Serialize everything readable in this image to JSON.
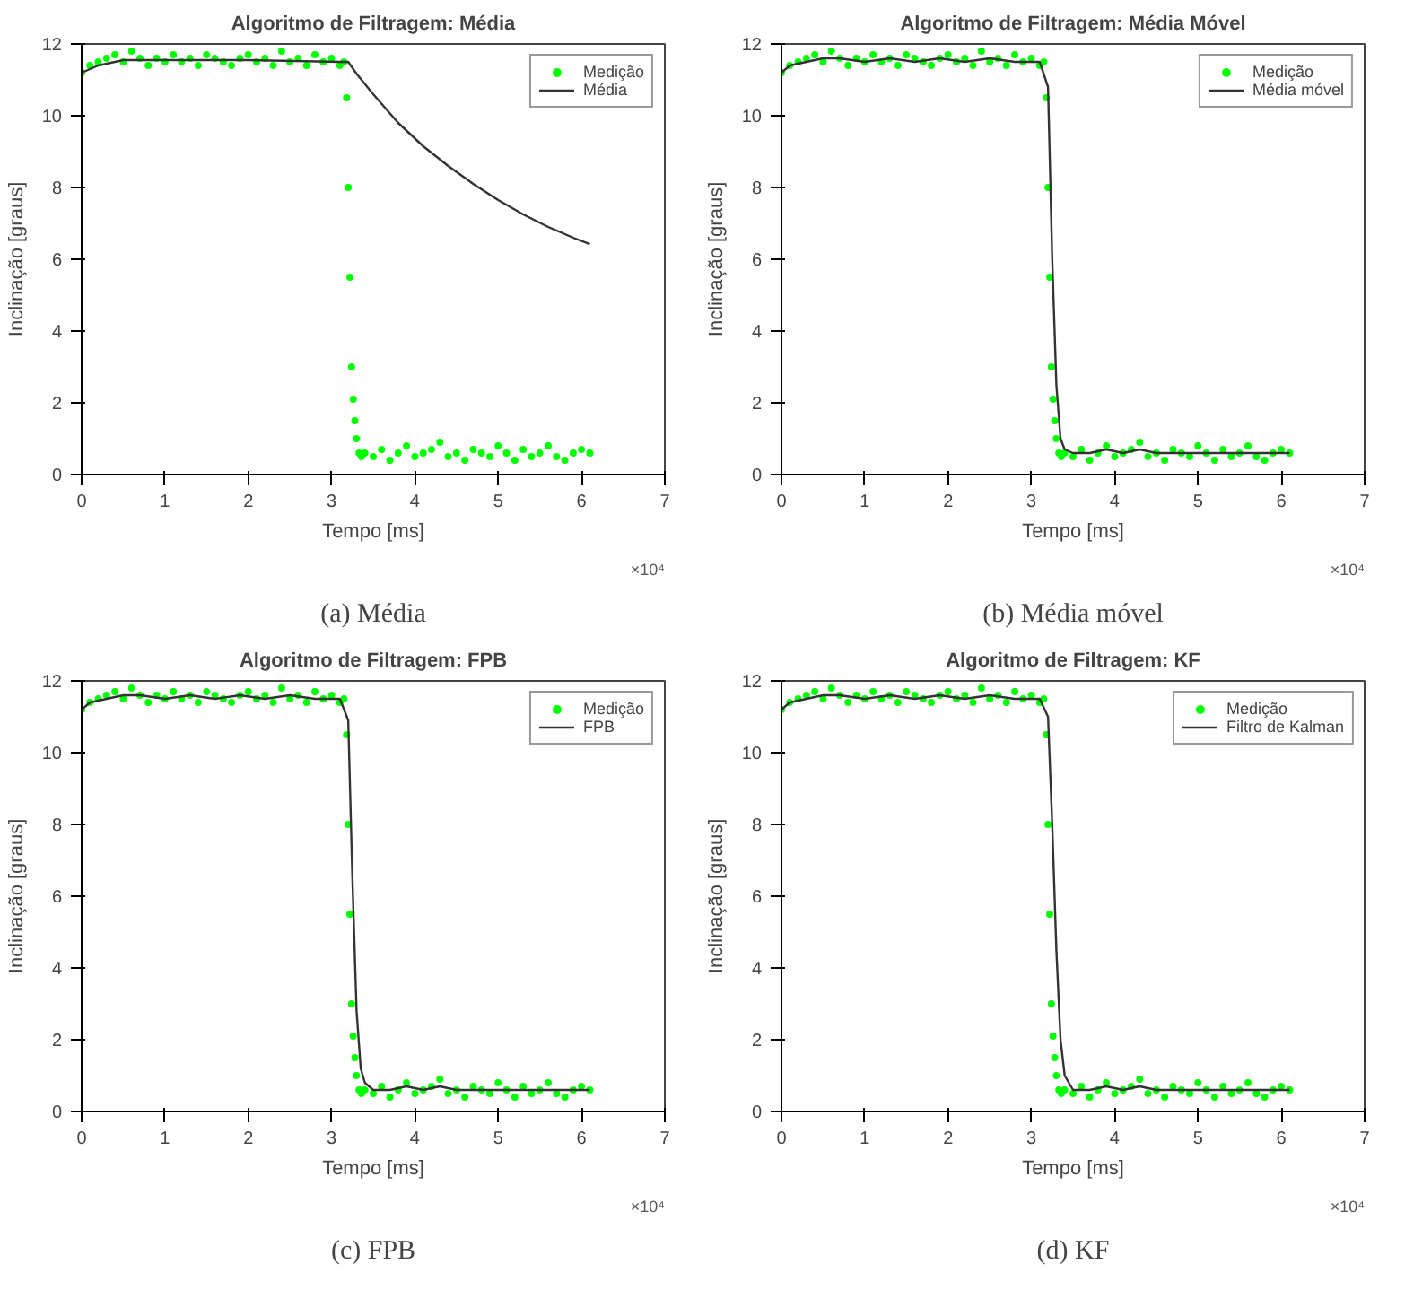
{
  "chart_data": [
    {
      "type": "line",
      "title": "Algoritmo de Filtragem: Média",
      "xlabel": "Tempo [ms]",
      "ylabel": "Inclinação [graus]",
      "annotations": [
        "×10⁴",
        "(a) Média"
      ],
      "xlim": [
        0,
        7
      ],
      "ylim": [
        0,
        12
      ],
      "xticks": [
        0,
        1,
        2,
        3,
        4,
        5,
        6,
        7
      ],
      "yticks": [
        0,
        2,
        4,
        6,
        8,
        10,
        12
      ],
      "grid": false,
      "legend": "top right",
      "series": [
        {
          "name": "Medição",
          "type": "scatter",
          "marker": "circle",
          "color": "#00ff00",
          "x": [
            0,
            0.1,
            0.2,
            0.3,
            0.4,
            0.5,
            0.6,
            0.7,
            0.8,
            0.9,
            1.0,
            1.1,
            1.2,
            1.3,
            1.4,
            1.5,
            1.6,
            1.7,
            1.8,
            1.9,
            2.0,
            2.1,
            2.2,
            2.3,
            2.4,
            2.5,
            2.6,
            2.7,
            2.8,
            2.9,
            3.0,
            3.1,
            3.15,
            3.18,
            3.2,
            3.22,
            3.24,
            3.26,
            3.28,
            3.3,
            3.33,
            3.36,
            3.4,
            3.5,
            3.6,
            3.7,
            3.8,
            3.9,
            4.0,
            4.1,
            4.2,
            4.3,
            4.4,
            4.5,
            4.6,
            4.7,
            4.8,
            4.9,
            5.0,
            5.1,
            5.2,
            5.3,
            5.4,
            5.5,
            5.6,
            5.7,
            5.8,
            5.9,
            6.0,
            6.1
          ],
          "values": [
            11.2,
            11.4,
            11.5,
            11.6,
            11.7,
            11.5,
            11.8,
            11.6,
            11.4,
            11.6,
            11.5,
            11.7,
            11.5,
            11.6,
            11.4,
            11.7,
            11.6,
            11.5,
            11.4,
            11.6,
            11.7,
            11.5,
            11.6,
            11.4,
            11.8,
            11.5,
            11.6,
            11.4,
            11.7,
            11.5,
            11.6,
            11.4,
            11.5,
            10.5,
            8.0,
            5.5,
            3.0,
            2.1,
            1.5,
            1.0,
            0.6,
            0.5,
            0.6,
            0.5,
            0.7,
            0.4,
            0.6,
            0.8,
            0.5,
            0.6,
            0.7,
            0.9,
            0.5,
            0.6,
            0.4,
            0.7,
            0.6,
            0.5,
            0.8,
            0.6,
            0.4,
            0.7,
            0.5,
            0.6,
            0.8,
            0.5,
            0.4,
            0.6,
            0.7,
            0.6
          ]
        },
        {
          "name": "Média",
          "color": "#333333",
          "x": [
            0,
            0.2,
            0.5,
            1.0,
            2.0,
            3.1,
            3.2,
            3.3,
            3.5,
            3.8,
            4.1,
            4.4,
            4.7,
            5.0,
            5.3,
            5.6,
            5.9,
            6.1
          ],
          "values": [
            11.2,
            11.4,
            11.55,
            11.55,
            11.55,
            11.5,
            11.5,
            11.17,
            10.6,
            9.8,
            9.15,
            8.6,
            8.1,
            7.65,
            7.25,
            6.9,
            6.6,
            6.42
          ]
        }
      ]
    },
    {
      "type": "line",
      "title": "Algoritmo de Filtragem: Média Móvel",
      "xlabel": "Tempo [ms]",
      "ylabel": "Inclinação [graus]",
      "annotations": [
        "×10⁴",
        "(b) Média móvel"
      ],
      "xlim": [
        0,
        7
      ],
      "ylim": [
        0,
        12
      ],
      "xticks": [
        0,
        1,
        2,
        3,
        4,
        5,
        6,
        7
      ],
      "yticks": [
        0,
        2,
        4,
        6,
        8,
        10,
        12
      ],
      "grid": false,
      "legend": "top right",
      "series": [
        {
          "name": "Medição",
          "type": "scatter",
          "marker": "circle",
          "color": "#00ff00",
          "x": [
            0,
            0.1,
            0.2,
            0.3,
            0.4,
            0.5,
            0.6,
            0.7,
            0.8,
            0.9,
            1.0,
            1.1,
            1.2,
            1.3,
            1.4,
            1.5,
            1.6,
            1.7,
            1.8,
            1.9,
            2.0,
            2.1,
            2.2,
            2.3,
            2.4,
            2.5,
            2.6,
            2.7,
            2.8,
            2.9,
            3.0,
            3.1,
            3.15,
            3.18,
            3.2,
            3.22,
            3.24,
            3.26,
            3.28,
            3.3,
            3.33,
            3.36,
            3.4,
            3.5,
            3.6,
            3.7,
            3.8,
            3.9,
            4.0,
            4.1,
            4.2,
            4.3,
            4.4,
            4.5,
            4.6,
            4.7,
            4.8,
            4.9,
            5.0,
            5.1,
            5.2,
            5.3,
            5.4,
            5.5,
            5.6,
            5.7,
            5.8,
            5.9,
            6.0,
            6.1
          ],
          "values": [
            11.2,
            11.4,
            11.5,
            11.6,
            11.7,
            11.5,
            11.8,
            11.6,
            11.4,
            11.6,
            11.5,
            11.7,
            11.5,
            11.6,
            11.4,
            11.7,
            11.6,
            11.5,
            11.4,
            11.6,
            11.7,
            11.5,
            11.6,
            11.4,
            11.8,
            11.5,
            11.6,
            11.4,
            11.7,
            11.5,
            11.6,
            11.4,
            11.5,
            10.5,
            8.0,
            5.5,
            3.0,
            2.1,
            1.5,
            1.0,
            0.6,
            0.5,
            0.6,
            0.5,
            0.7,
            0.4,
            0.6,
            0.8,
            0.5,
            0.6,
            0.7,
            0.9,
            0.5,
            0.6,
            0.4,
            0.7,
            0.6,
            0.5,
            0.8,
            0.6,
            0.4,
            0.7,
            0.5,
            0.6,
            0.8,
            0.5,
            0.4,
            0.6,
            0.7,
            0.6
          ]
        },
        {
          "name": "Média móvel",
          "color": "#333333",
          "x": [
            0,
            0.1,
            0.3,
            0.5,
            0.7,
            1.0,
            1.3,
            1.6,
            1.9,
            2.2,
            2.5,
            2.8,
            3.1,
            3.2,
            3.25,
            3.3,
            3.35,
            3.4,
            3.5,
            3.7,
            3.9,
            4.1,
            4.3,
            4.5,
            4.7,
            4.9,
            5.1,
            5.3,
            5.5,
            5.7,
            5.9,
            6.1
          ],
          "values": [
            11.2,
            11.4,
            11.5,
            11.6,
            11.6,
            11.5,
            11.6,
            11.5,
            11.6,
            11.5,
            11.6,
            11.5,
            11.5,
            10.8,
            6.0,
            2.5,
            1.0,
            0.7,
            0.6,
            0.6,
            0.7,
            0.6,
            0.7,
            0.6,
            0.6,
            0.6,
            0.6,
            0.6,
            0.6,
            0.6,
            0.6,
            0.6
          ]
        }
      ]
    },
    {
      "type": "line",
      "title": "Algoritmo de Filtragem: FPB",
      "xlabel": "Tempo [ms]",
      "ylabel": "Inclinação [graus]",
      "annotations": [
        "×10⁴",
        "(c) FPB"
      ],
      "xlim": [
        0,
        7
      ],
      "ylim": [
        0,
        12
      ],
      "xticks": [
        0,
        1,
        2,
        3,
        4,
        5,
        6,
        7
      ],
      "yticks": [
        0,
        2,
        4,
        6,
        8,
        10,
        12
      ],
      "grid": false,
      "legend": "top right",
      "series": [
        {
          "name": "Medição",
          "type": "scatter",
          "marker": "circle",
          "color": "#00ff00",
          "x": [
            0,
            0.1,
            0.2,
            0.3,
            0.4,
            0.5,
            0.6,
            0.7,
            0.8,
            0.9,
            1.0,
            1.1,
            1.2,
            1.3,
            1.4,
            1.5,
            1.6,
            1.7,
            1.8,
            1.9,
            2.0,
            2.1,
            2.2,
            2.3,
            2.4,
            2.5,
            2.6,
            2.7,
            2.8,
            2.9,
            3.0,
            3.1,
            3.15,
            3.18,
            3.2,
            3.22,
            3.24,
            3.26,
            3.28,
            3.3,
            3.33,
            3.36,
            3.4,
            3.5,
            3.6,
            3.7,
            3.8,
            3.9,
            4.0,
            4.1,
            4.2,
            4.3,
            4.4,
            4.5,
            4.6,
            4.7,
            4.8,
            4.9,
            5.0,
            5.1,
            5.2,
            5.3,
            5.4,
            5.5,
            5.6,
            5.7,
            5.8,
            5.9,
            6.0,
            6.1
          ],
          "values": [
            11.2,
            11.4,
            11.5,
            11.6,
            11.7,
            11.5,
            11.8,
            11.6,
            11.4,
            11.6,
            11.5,
            11.7,
            11.5,
            11.6,
            11.4,
            11.7,
            11.6,
            11.5,
            11.4,
            11.6,
            11.7,
            11.5,
            11.6,
            11.4,
            11.8,
            11.5,
            11.6,
            11.4,
            11.7,
            11.5,
            11.6,
            11.4,
            11.5,
            10.5,
            8.0,
            5.5,
            3.0,
            2.1,
            1.5,
            1.0,
            0.6,
            0.5,
            0.6,
            0.5,
            0.7,
            0.4,
            0.6,
            0.8,
            0.5,
            0.6,
            0.7,
            0.9,
            0.5,
            0.6,
            0.4,
            0.7,
            0.6,
            0.5,
            0.8,
            0.6,
            0.4,
            0.7,
            0.5,
            0.6,
            0.8,
            0.5,
            0.4,
            0.6,
            0.7,
            0.6
          ]
        },
        {
          "name": "FPB",
          "color": "#333333",
          "x": [
            0,
            0.1,
            0.3,
            0.5,
            0.7,
            1.0,
            1.3,
            1.6,
            1.9,
            2.2,
            2.5,
            2.8,
            3.1,
            3.2,
            3.25,
            3.3,
            3.35,
            3.4,
            3.5,
            3.7,
            3.9,
            4.1,
            4.3,
            4.5,
            4.7,
            4.9,
            5.1,
            5.3,
            5.5,
            5.7,
            5.9,
            6.1
          ],
          "values": [
            11.2,
            11.4,
            11.5,
            11.6,
            11.6,
            11.5,
            11.6,
            11.5,
            11.6,
            11.5,
            11.6,
            11.5,
            11.5,
            10.9,
            6.5,
            2.8,
            1.2,
            0.8,
            0.6,
            0.6,
            0.7,
            0.6,
            0.7,
            0.6,
            0.6,
            0.6,
            0.6,
            0.6,
            0.6,
            0.6,
            0.6,
            0.6
          ]
        }
      ]
    },
    {
      "type": "line",
      "title": "Algoritmo de Filtragem: KF",
      "xlabel": "Tempo [ms]",
      "ylabel": "Inclinação [graus]",
      "annotations": [
        "×10⁴",
        "(d) KF"
      ],
      "xlim": [
        0,
        7
      ],
      "ylim": [
        0,
        12
      ],
      "xticks": [
        0,
        1,
        2,
        3,
        4,
        5,
        6,
        7
      ],
      "yticks": [
        0,
        2,
        4,
        6,
        8,
        10,
        12
      ],
      "grid": false,
      "legend": "top right",
      "series": [
        {
          "name": "Medição",
          "type": "scatter",
          "marker": "circle",
          "color": "#00ff00",
          "x": [
            0,
            0.1,
            0.2,
            0.3,
            0.4,
            0.5,
            0.6,
            0.7,
            0.8,
            0.9,
            1.0,
            1.1,
            1.2,
            1.3,
            1.4,
            1.5,
            1.6,
            1.7,
            1.8,
            1.9,
            2.0,
            2.1,
            2.2,
            2.3,
            2.4,
            2.5,
            2.6,
            2.7,
            2.8,
            2.9,
            3.0,
            3.1,
            3.15,
            3.18,
            3.2,
            3.22,
            3.24,
            3.26,
            3.28,
            3.3,
            3.33,
            3.36,
            3.4,
            3.5,
            3.6,
            3.7,
            3.8,
            3.9,
            4.0,
            4.1,
            4.2,
            4.3,
            4.4,
            4.5,
            4.6,
            4.7,
            4.8,
            4.9,
            5.0,
            5.1,
            5.2,
            5.3,
            5.4,
            5.5,
            5.6,
            5.7,
            5.8,
            5.9,
            6.0,
            6.1
          ],
          "values": [
            11.2,
            11.4,
            11.5,
            11.6,
            11.7,
            11.5,
            11.8,
            11.6,
            11.4,
            11.6,
            11.5,
            11.7,
            11.5,
            11.6,
            11.4,
            11.7,
            11.6,
            11.5,
            11.4,
            11.6,
            11.7,
            11.5,
            11.6,
            11.4,
            11.8,
            11.5,
            11.6,
            11.4,
            11.7,
            11.5,
            11.6,
            11.4,
            11.5,
            10.5,
            8.0,
            5.5,
            3.0,
            2.1,
            1.5,
            1.0,
            0.6,
            0.5,
            0.6,
            0.5,
            0.7,
            0.4,
            0.6,
            0.8,
            0.5,
            0.6,
            0.7,
            0.9,
            0.5,
            0.6,
            0.4,
            0.7,
            0.6,
            0.5,
            0.8,
            0.6,
            0.4,
            0.7,
            0.5,
            0.6,
            0.8,
            0.5,
            0.4,
            0.6,
            0.7,
            0.6
          ]
        },
        {
          "name": "Filtro de Kalman",
          "color": "#333333",
          "x": [
            0,
            0.1,
            0.3,
            0.5,
            0.7,
            1.0,
            1.3,
            1.6,
            1.9,
            2.2,
            2.5,
            2.8,
            3.1,
            3.2,
            3.25,
            3.3,
            3.35,
            3.4,
            3.5,
            3.7,
            3.9,
            4.1,
            4.3,
            4.5,
            4.7,
            4.9,
            5.1,
            5.3,
            5.5,
            5.7,
            5.9,
            6.1
          ],
          "values": [
            11.2,
            11.4,
            11.5,
            11.6,
            11.6,
            11.5,
            11.6,
            11.5,
            11.6,
            11.5,
            11.6,
            11.5,
            11.5,
            11.0,
            8.0,
            4.5,
            2.0,
            1.0,
            0.6,
            0.6,
            0.7,
            0.6,
            0.7,
            0.6,
            0.6,
            0.6,
            0.6,
            0.6,
            0.6,
            0.6,
            0.6,
            0.6
          ]
        }
      ]
    }
  ]
}
